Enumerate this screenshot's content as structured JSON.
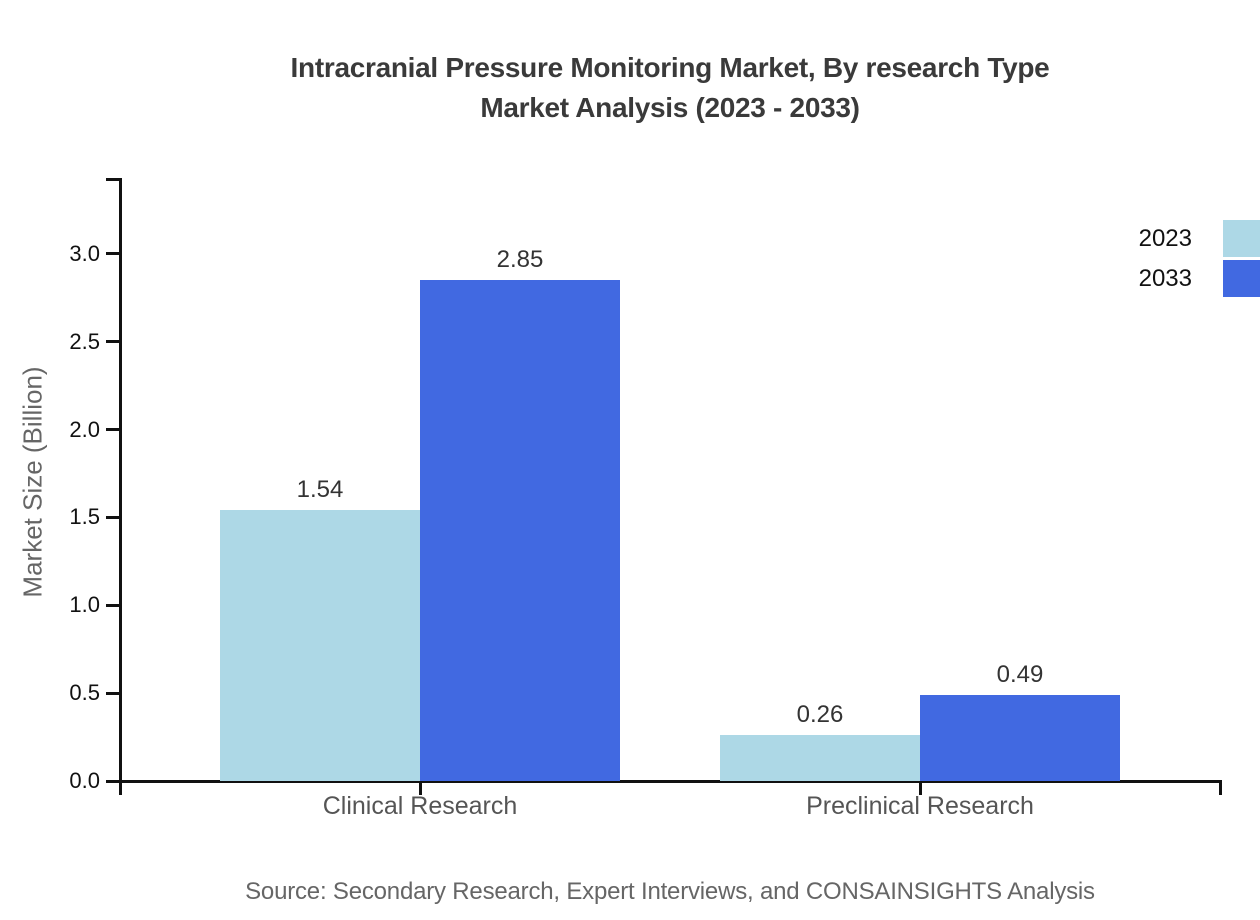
{
  "title": {
    "line1": "Intracranial Pressure Monitoring Market, By research Type",
    "line2": "Market Analysis (2023 - 2033)"
  },
  "source": "Source: Secondary Research, Expert Interviews, and CONSAINSIGHTS Analysis",
  "chart_data": {
    "type": "bar",
    "title": "Intracranial Pressure Monitoring Market, By research Type Market Analysis (2023 - 2033)",
    "categories": [
      "Clinical Research",
      "Preclinical Research"
    ],
    "series": [
      {
        "name": "2023",
        "color": "#ADD8E6",
        "values": [
          1.54,
          0.26
        ]
      },
      {
        "name": "2033",
        "color": "#4169E1",
        "values": [
          2.85,
          0.49
        ]
      }
    ],
    "xlabel": "",
    "ylabel": "Market Size (Billion)",
    "ylim": [
      0,
      3.43
    ],
    "yticks": [
      0.0,
      0.5,
      1.0,
      1.5,
      2.0,
      2.5,
      3.0
    ],
    "grid": false,
    "legend_position": "upper right outside",
    "value_labels": true,
    "value_label_format": "0.00"
  }
}
